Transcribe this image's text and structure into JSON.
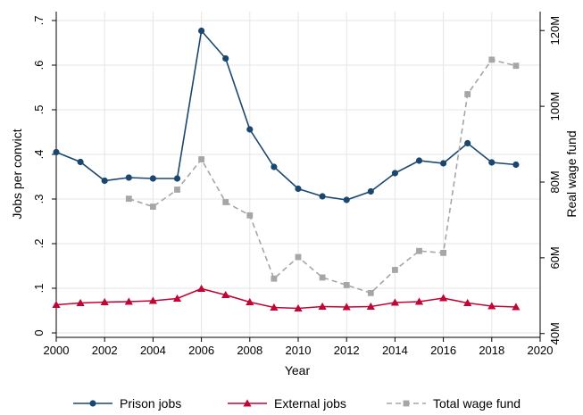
{
  "chart_data": {
    "type": "line",
    "x": [
      2000,
      2001,
      2002,
      2003,
      2004,
      2005,
      2006,
      2007,
      2008,
      2009,
      2010,
      2011,
      2012,
      2013,
      2014,
      2015,
      2016,
      2017,
      2018,
      2019
    ],
    "xlabel": "Year",
    "ylabel_left": "Jobs per convict",
    "ylabel_right": "Real wage fund",
    "xlim": [
      2000,
      2020
    ],
    "ylim_left": [
      -0.01,
      0.72
    ],
    "ylim_right": [
      39,
      125
    ],
    "x_ticks": [
      "2000",
      "2002",
      "2004",
      "2006",
      "2008",
      "2010",
      "2012",
      "2014",
      "2016",
      "2018",
      "2020"
    ],
    "y_ticks_left": [
      "0",
      ".1",
      ".2",
      ".3",
      ".4",
      ".5",
      ".6",
      ".7"
    ],
    "y_ticks_right": [
      "40M",
      "60M",
      "80M",
      "100M",
      "120M"
    ],
    "grid": true,
    "legend_position": "bottom",
    "series": [
      {
        "name": "Prison jobs",
        "axis": "left",
        "color": "#1a476f",
        "marker": "circle",
        "style": "solid",
        "values": [
          0.405,
          0.383,
          0.341,
          0.348,
          0.346,
          0.346,
          0.677,
          0.615,
          0.456,
          0.372,
          0.323,
          0.306,
          0.298,
          0.317,
          0.358,
          0.386,
          0.38,
          0.425,
          0.382,
          0.377
        ]
      },
      {
        "name": "External jobs",
        "axis": "left",
        "color": "#c10534",
        "marker": "triangle",
        "style": "solid",
        "values": [
          0.063,
          0.067,
          0.069,
          0.07,
          0.072,
          0.077,
          0.099,
          0.085,
          0.069,
          0.057,
          0.055,
          0.059,
          0.058,
          0.059,
          0.068,
          0.07,
          0.078,
          0.067,
          0.06,
          0.058
        ]
      },
      {
        "name": "Total wage fund",
        "axis": "right",
        "color": "#a6a6a6",
        "marker": "square",
        "style": "dashed",
        "values": [
          null,
          null,
          null,
          75.6,
          73.5,
          78.0,
          86.0,
          74.7,
          71.2,
          54.5,
          60.2,
          54.8,
          52.8,
          50.7,
          56.8,
          61.8,
          61.3,
          103.2,
          112.3,
          110.7
        ]
      }
    ]
  }
}
